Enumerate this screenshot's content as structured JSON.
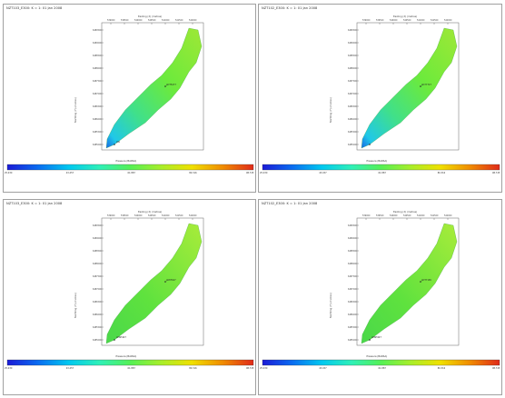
{
  "panels": [
    {
      "title": "NZT103_E300: K = 1: 01 Jan 2008",
      "well": "pDT5277",
      "well2": "pW",
      "cbar_label": "Pressure (BARSA)"
    },
    {
      "title": "NZT102_E300: K = 1: 01 Jan 2008",
      "well": "pD77727",
      "well2": "",
      "cbar_label": "Pressure (BARSA)"
    },
    {
      "title": "NZT103_E300: K = 1: 01 Jan 2008",
      "well": "pK87627",
      "well2": "pP6H427",
      "cbar_label": "Pressure (BARSA)"
    },
    {
      "title": "NZT102_E300: K = 1: 01 Jan 2008",
      "well": "pDT7165",
      "well2": "pP6H427",
      "cbar_label": "Pressure (BARSA)"
    }
  ],
  "axis": {
    "x_title": "Easting (X) (metres)",
    "y_title": "Northing (Y) (metres)",
    "x_ticks": [
      "539000",
      "539500",
      "540000",
      "540500",
      "541000",
      "541500",
      "542000"
    ],
    "y_ticks": [
      "6489500",
      "6489000",
      "6488500",
      "6488000",
      "6487500",
      "6487000",
      "6486500",
      "6486000",
      "6485500",
      "6485000"
    ]
  },
  "colorbar": {
    "ticks": [
      "25.030",
      "43.457",
      "61.887",
      "80.316",
      "98.745"
    ],
    "colors": [
      "#1b1bd6",
      "#0a6cf0",
      "#00c8f0",
      "#2ff0b8",
      "#55f055",
      "#a8ee2a",
      "#f0e000",
      "#f08c00",
      "#e02a1a"
    ]
  }
}
